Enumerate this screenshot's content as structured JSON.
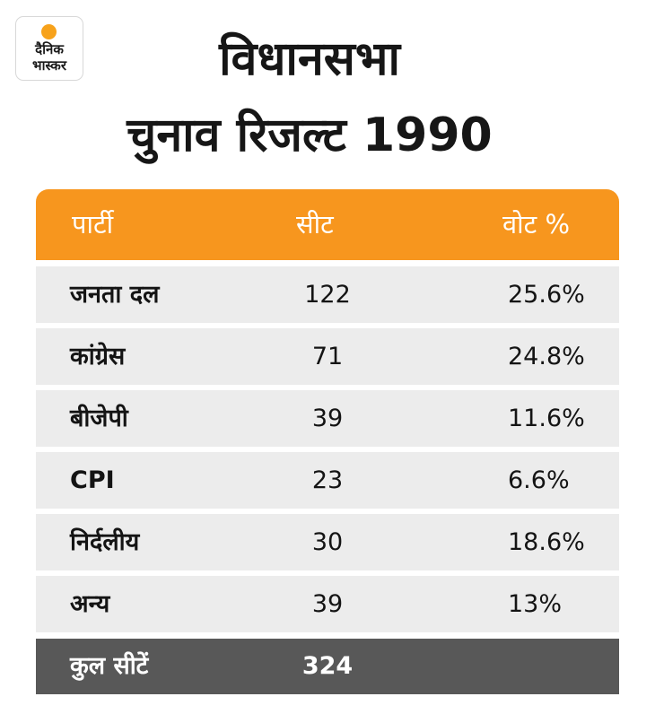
{
  "logo": {
    "line1": "दैनिक",
    "line2": "भास्कर",
    "accent": "#f7a21b"
  },
  "title": {
    "line1": "विधानसभा",
    "line2": "चुनाव रिजल्ट 1990"
  },
  "colors": {
    "header_bg": "#f7961e",
    "row_bg": "#ececec",
    "total_bg": "#585858"
  },
  "chart_data": {
    "type": "table",
    "title": "विधानसभा चुनाव रिजल्ट 1990",
    "columns": [
      "पार्टी",
      "सीट",
      "वोट %"
    ],
    "rows": [
      {
        "party": "जनता दल",
        "seats": "122",
        "vote": "25.6%"
      },
      {
        "party": "कांग्रेस",
        "seats": "71",
        "vote": "24.8%"
      },
      {
        "party": "बीजेपी",
        "seats": "39",
        "vote": "11.6%"
      },
      {
        "party": "CPI",
        "seats": "23",
        "vote": "6.6%"
      },
      {
        "party": "निर्दलीय",
        "seats": "30",
        "vote": "18.6%"
      },
      {
        "party": "अन्य",
        "seats": "39",
        "vote": "13%"
      }
    ],
    "total": {
      "label": "कुल सीटें",
      "seats": "324"
    }
  }
}
